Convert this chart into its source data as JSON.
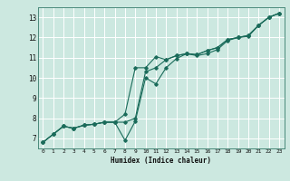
{
  "xlabel": "Humidex (Indice chaleur)",
  "background_color": "#cce8e0",
  "grid_color": "#ffffff",
  "line_color": "#1a6b5a",
  "xlim": [
    -0.5,
    23.5
  ],
  "ylim": [
    6.5,
    13.5
  ],
  "xticks": [
    0,
    1,
    2,
    3,
    4,
    5,
    6,
    7,
    8,
    9,
    10,
    11,
    12,
    13,
    14,
    15,
    16,
    17,
    18,
    19,
    20,
    21,
    22,
    23
  ],
  "yticks": [
    7,
    8,
    9,
    10,
    11,
    12,
    13
  ],
  "line1_x": [
    0,
    1,
    2,
    3,
    4,
    5,
    6,
    7,
    8,
    9,
    10,
    11,
    12,
    13,
    14,
    15,
    16,
    17,
    18,
    19,
    20,
    21,
    22,
    23
  ],
  "line1_y": [
    6.8,
    7.2,
    7.6,
    7.5,
    7.65,
    7.7,
    7.8,
    7.8,
    6.9,
    7.85,
    10.0,
    9.7,
    10.5,
    10.95,
    11.2,
    11.1,
    11.2,
    11.4,
    11.85,
    12.0,
    12.05,
    12.6,
    13.0,
    13.2
  ],
  "line2_x": [
    0,
    1,
    2,
    3,
    4,
    5,
    6,
    7,
    8,
    9,
    10,
    11,
    12,
    13,
    14,
    15,
    16,
    17,
    18,
    19,
    20,
    21,
    22,
    23
  ],
  "line2_y": [
    6.8,
    7.2,
    7.6,
    7.5,
    7.65,
    7.7,
    7.8,
    7.8,
    8.2,
    10.5,
    10.5,
    11.05,
    10.9,
    11.1,
    11.2,
    11.15,
    11.35,
    11.5,
    11.9,
    12.0,
    12.1,
    12.6,
    13.0,
    13.2
  ],
  "line3_x": [
    0,
    1,
    2,
    3,
    4,
    5,
    6,
    7,
    8,
    9,
    10,
    11,
    12,
    13,
    14,
    15,
    16,
    17,
    18,
    19,
    20,
    21,
    22,
    23
  ],
  "line3_y": [
    6.8,
    7.2,
    7.6,
    7.5,
    7.65,
    7.7,
    7.8,
    7.8,
    7.8,
    8.0,
    10.3,
    10.5,
    10.9,
    11.1,
    11.2,
    11.15,
    11.35,
    11.5,
    11.9,
    12.0,
    12.1,
    12.6,
    13.0,
    13.2
  ]
}
